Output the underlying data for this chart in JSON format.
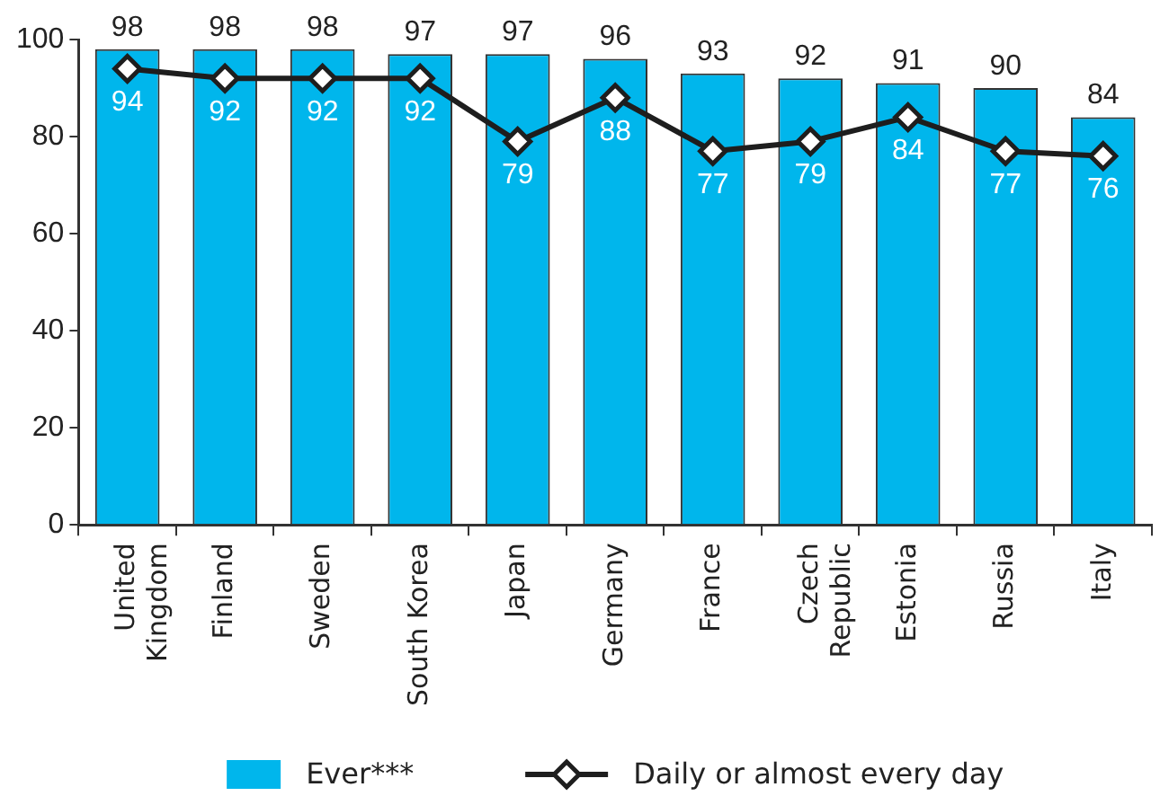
{
  "chart_data": {
    "type": "bar",
    "categories": [
      "United Kingdom",
      "Finland",
      "Sweden",
      "South Korea",
      "Japan",
      "Germany",
      "France",
      "Czech Republic",
      "Estonia",
      "Russia",
      "Italy"
    ],
    "series": [
      {
        "name": "Ever***",
        "color": "#00b6ec",
        "values": [
          98,
          98,
          98,
          97,
          97,
          96,
          93,
          92,
          91,
          90,
          84
        ]
      },
      {
        "name": "Daily or almost every day",
        "type": "line",
        "color": "#1e1e1e",
        "values": [
          94,
          92,
          92,
          92,
          79,
          88,
          77,
          79,
          84,
          77,
          76
        ]
      }
    ],
    "ylim": [
      0,
      100
    ],
    "yticks": [
      0,
      20,
      40,
      60,
      80,
      100
    ],
    "grid": false,
    "legend": "bottom",
    "marker": "diamond",
    "data_labels": true
  }
}
